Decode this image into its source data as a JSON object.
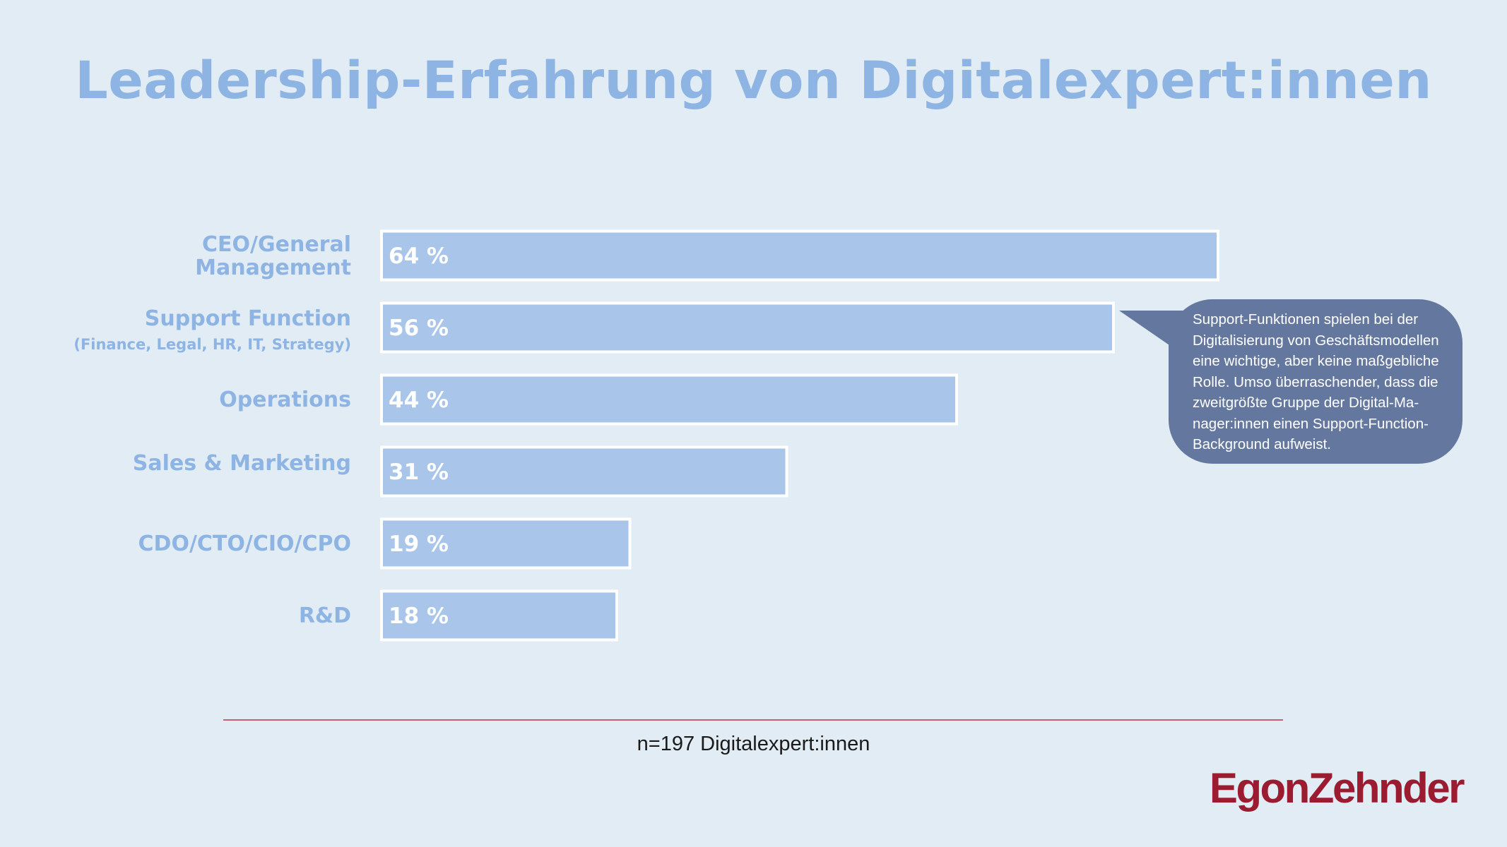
{
  "title": "Leadership-Erfahrung von Digitalexpert:innen",
  "chart_data": {
    "type": "bar",
    "orientation": "horizontal",
    "categories": [
      {
        "label": "CEO/General\nManagement",
        "sublabel": ""
      },
      {
        "label": "Support Function",
        "sublabel": "(Finance, Legal, HR, IT, Strategy)"
      },
      {
        "label": "Operations",
        "sublabel": ""
      },
      {
        "label": "Sales & Marketing",
        "sublabel": ""
      },
      {
        "label": "CDO/CTO/CIO/CPO",
        "sublabel": ""
      },
      {
        "label": "R&D",
        "sublabel": ""
      }
    ],
    "values": [
      64,
      56,
      44,
      31,
      19,
      18
    ],
    "value_labels": [
      "64 %",
      "56 %",
      "44 %",
      "31 %",
      "19 %",
      "18 %"
    ],
    "unit": "%",
    "grid": false,
    "legend": "none"
  },
  "callout": {
    "text": "Support-Funktionen spielen bei der\nDigitalisierung von Geschäftsmodellen\neine wichtige, aber keine maßgebliche\nRolle. Umso überraschender, dass die\nzweitgrößte Gruppe der Digital-Ma-\nnager:innen einen Support-Function-\nBackground aufweist.",
    "target_category": "Support Function"
  },
  "footnote": "n=197 Digitalexpert:innen",
  "brand": "EgonZehnder",
  "colors": {
    "background": "#e1ecf5",
    "bar": "#a9c6ea",
    "label": "#8eb4e3",
    "callout": "#64789f",
    "brand": "#9b1b30",
    "rule": "#c4646e"
  }
}
